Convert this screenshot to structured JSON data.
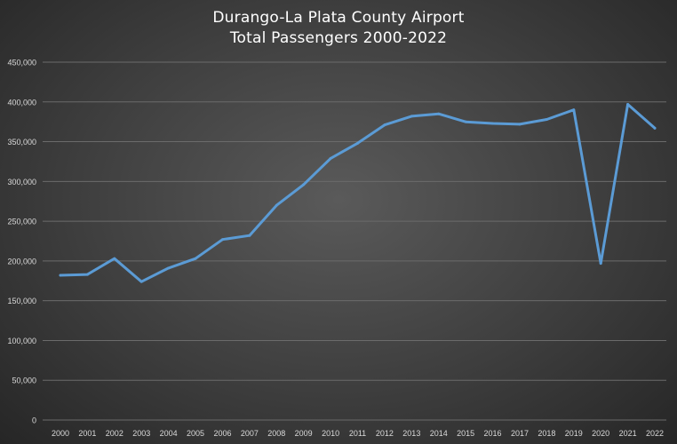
{
  "chart_data": {
    "type": "line",
    "title": "Durango-La Plata County Airport",
    "subtitle": "Total Passengers 2000-2022",
    "xlabel": "",
    "ylabel": "",
    "ylim": [
      0,
      450000
    ],
    "y_ticks": [
      0,
      50000,
      100000,
      150000,
      200000,
      250000,
      300000,
      350000,
      400000,
      450000
    ],
    "y_tick_labels": [
      "0",
      "50,000",
      "100,000",
      "150,000",
      "200,000",
      "250,000",
      "300,000",
      "350,000",
      "400,000",
      "450,000"
    ],
    "grid": true,
    "legend": "none",
    "categories": [
      "2000",
      "2001",
      "2002",
      "2003",
      "2004",
      "2005",
      "2006",
      "2007",
      "2008",
      "2009",
      "2010",
      "2011",
      "2012",
      "2013",
      "2014",
      "2015",
      "2016",
      "2017",
      "2018",
      "2019",
      "2020",
      "2021",
      "2022"
    ],
    "series": [
      {
        "values": [
          182000,
          183000,
          203000,
          174000,
          191000,
          203000,
          227000,
          232000,
          270000,
          296000,
          329000,
          348000,
          371000,
          382000,
          385000,
          375000,
          373000,
          372000,
          378000,
          390000,
          197000,
          397000,
          367000
        ]
      }
    ]
  },
  "colors": {
    "line": "#5b9bd5",
    "grid": "#6b6b6b",
    "text": "#d9d9d9",
    "title": "#ffffff"
  }
}
